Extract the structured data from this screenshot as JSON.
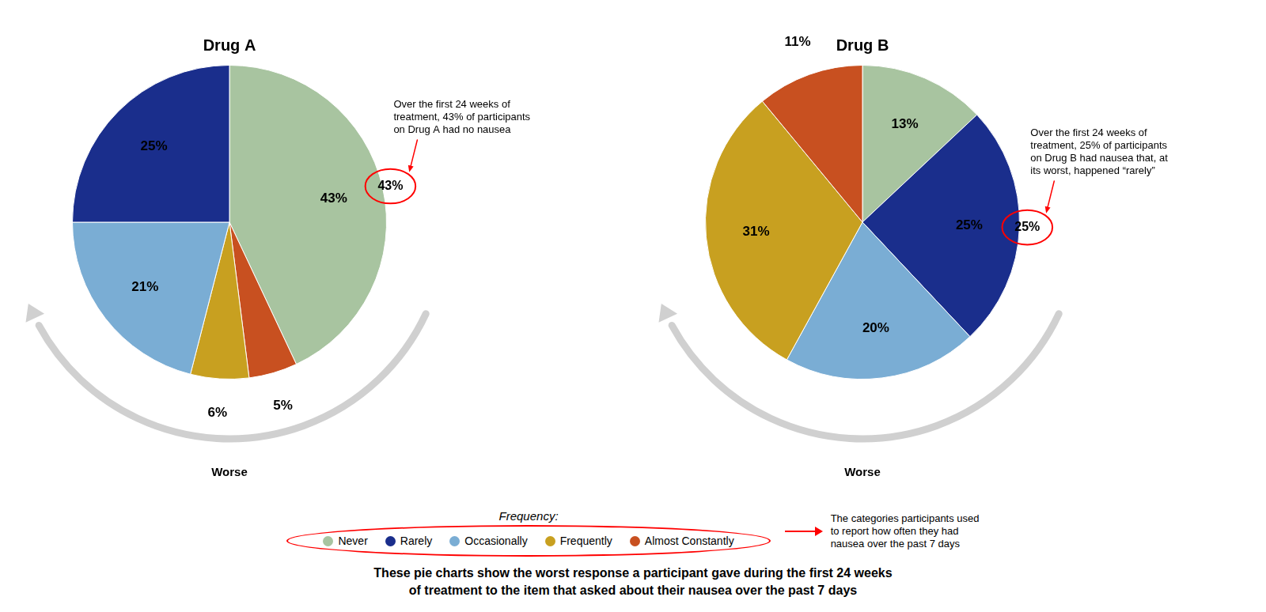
{
  "chart_data": [
    {
      "type": "pie",
      "title": "Drug A",
      "categories": [
        "Never",
        "Almost Constantly",
        "Frequently",
        "Occasionally",
        "Rarely"
      ],
      "values": [
        43,
        5,
        6,
        21,
        25
      ],
      "value_labels": [
        "43%",
        "5%",
        "6%",
        "21%",
        "25%"
      ],
      "colors": [
        "#a8c4a0",
        "#c85020",
        "#c8a020",
        "#7aadd4",
        "#1a2e8c"
      ],
      "data_labels": true,
      "annotations": [
        {
          "text": "Over the first 24 weeks of\ntreatment, 43% of participants\non Drug A had no nausea",
          "category": "Never"
        }
      ]
    },
    {
      "type": "pie",
      "title": "Drug B",
      "categories": [
        "Never",
        "Rarely",
        "Occasionally",
        "Frequently",
        "Almost Constantly"
      ],
      "values": [
        13,
        25,
        20,
        31,
        11
      ],
      "value_labels": [
        "13%",
        "25%",
        "20%",
        "31%",
        "11%"
      ],
      "colors": [
        "#a8c4a0",
        "#1a2e8c",
        "#7aadd4",
        "#c8a020",
        "#c85020"
      ],
      "data_labels": true,
      "annotations": [
        {
          "text": "Over the first 24 weeks of\ntreatment, 25% of participants\non Drug B had nausea that, at\nits worst, happened “rarely”",
          "category": "Rarely"
        }
      ]
    }
  ],
  "worse_label": "Worse",
  "legend_title": "Frequency:",
  "legend_labels": [
    "Never",
    "Rarely",
    "Occasionally",
    "Frequently",
    "Almost Constantly"
  ],
  "legend_note": "The categories participants used\nto report how often they had\nnausea over the past 7 days",
  "caption": [
    "These pie charts show the worst response a participant gave during the first 24 weeks",
    "of treatment to the item that asked about their nausea over the past 7 days"
  ]
}
